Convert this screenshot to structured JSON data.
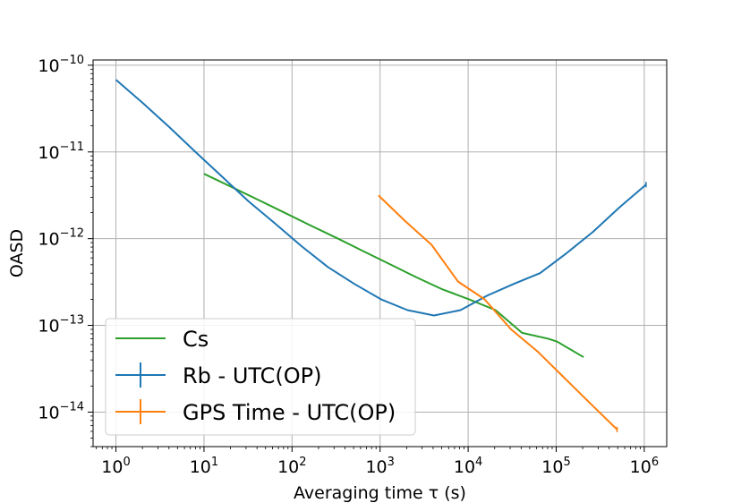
{
  "chart_data": {
    "type": "line",
    "xscale": "log",
    "yscale": "log",
    "xlabel": "Averaging time τ (s)",
    "ylabel": "OASD",
    "xlim": [
      0.55,
      1800000
    ],
    "ylim": [
      4e-15,
      1.15e-10
    ],
    "grid": true,
    "legend_position": "lower-left",
    "x_ticks": [
      {
        "value": 1,
        "base": "10",
        "exp": "0"
      },
      {
        "value": 10,
        "base": "10",
        "exp": "1"
      },
      {
        "value": 100,
        "base": "10",
        "exp": "2"
      },
      {
        "value": 1000,
        "base": "10",
        "exp": "3"
      },
      {
        "value": 10000,
        "base": "10",
        "exp": "4"
      },
      {
        "value": 100000,
        "base": "10",
        "exp": "5"
      },
      {
        "value": 1000000,
        "base": "10",
        "exp": "6"
      }
    ],
    "y_ticks": [
      {
        "value": 1e-14,
        "base": "10",
        "exp": "−14"
      },
      {
        "value": 1e-13,
        "base": "10",
        "exp": "−13"
      },
      {
        "value": 1e-12,
        "base": "10",
        "exp": "−12"
      },
      {
        "value": 1e-11,
        "base": "10",
        "exp": "−11"
      },
      {
        "value": 1e-10,
        "base": "10",
        "exp": "−10"
      }
    ],
    "series": [
      {
        "name": "Cs",
        "color": "#2ca02c",
        "legend_style": "line",
        "x": [
          10,
          20,
          40,
          80,
          160,
          320,
          640,
          1280,
          2560,
          5120,
          10240,
          20480,
          40960,
          81920,
          102400,
          204800
        ],
        "y": [
          5.6e-12,
          4e-12,
          2.85e-12,
          2.02e-12,
          1.43e-12,
          1.02e-12,
          7.2e-13,
          5.1e-13,
          3.6e-13,
          2.6e-13,
          2e-13,
          1.5e-13,
          8.2e-14,
          7e-14,
          6.5e-14,
          4.3e-14
        ]
      },
      {
        "name": "Rb - UTC(OP)",
        "color": "#1f77b4",
        "legend_style": "errorbar",
        "x": [
          1,
          2,
          4,
          8,
          16,
          32,
          64,
          128,
          256,
          512,
          1024,
          2048,
          4096,
          8192,
          16384,
          32768,
          65536,
          131072,
          262144,
          524288,
          1048576
        ],
        "y": [
          6.8e-11,
          3.7e-11,
          1.95e-11,
          1e-11,
          5.2e-12,
          2.7e-12,
          1.5e-12,
          8.2e-13,
          4.7e-13,
          3e-13,
          2e-13,
          1.5e-13,
          1.3e-13,
          1.5e-13,
          2.2e-13,
          3e-13,
          4e-13,
          6.8e-13,
          1.2e-12,
          2.3e-12,
          4.2e-12
        ]
      },
      {
        "name": "GPS Time - UTC(OP)",
        "color": "#ff7f0e",
        "legend_style": "errorbar",
        "x": [
          960,
          1920,
          3840,
          7680,
          15360,
          30720,
          61440,
          122880,
          245760,
          491520
        ],
        "y": [
          3.15e-12,
          1.6e-12,
          8.5e-13,
          3.2e-13,
          2e-13,
          9e-14,
          5e-14,
          2.5e-14,
          1.25e-14,
          6.3e-15
        ]
      }
    ]
  }
}
